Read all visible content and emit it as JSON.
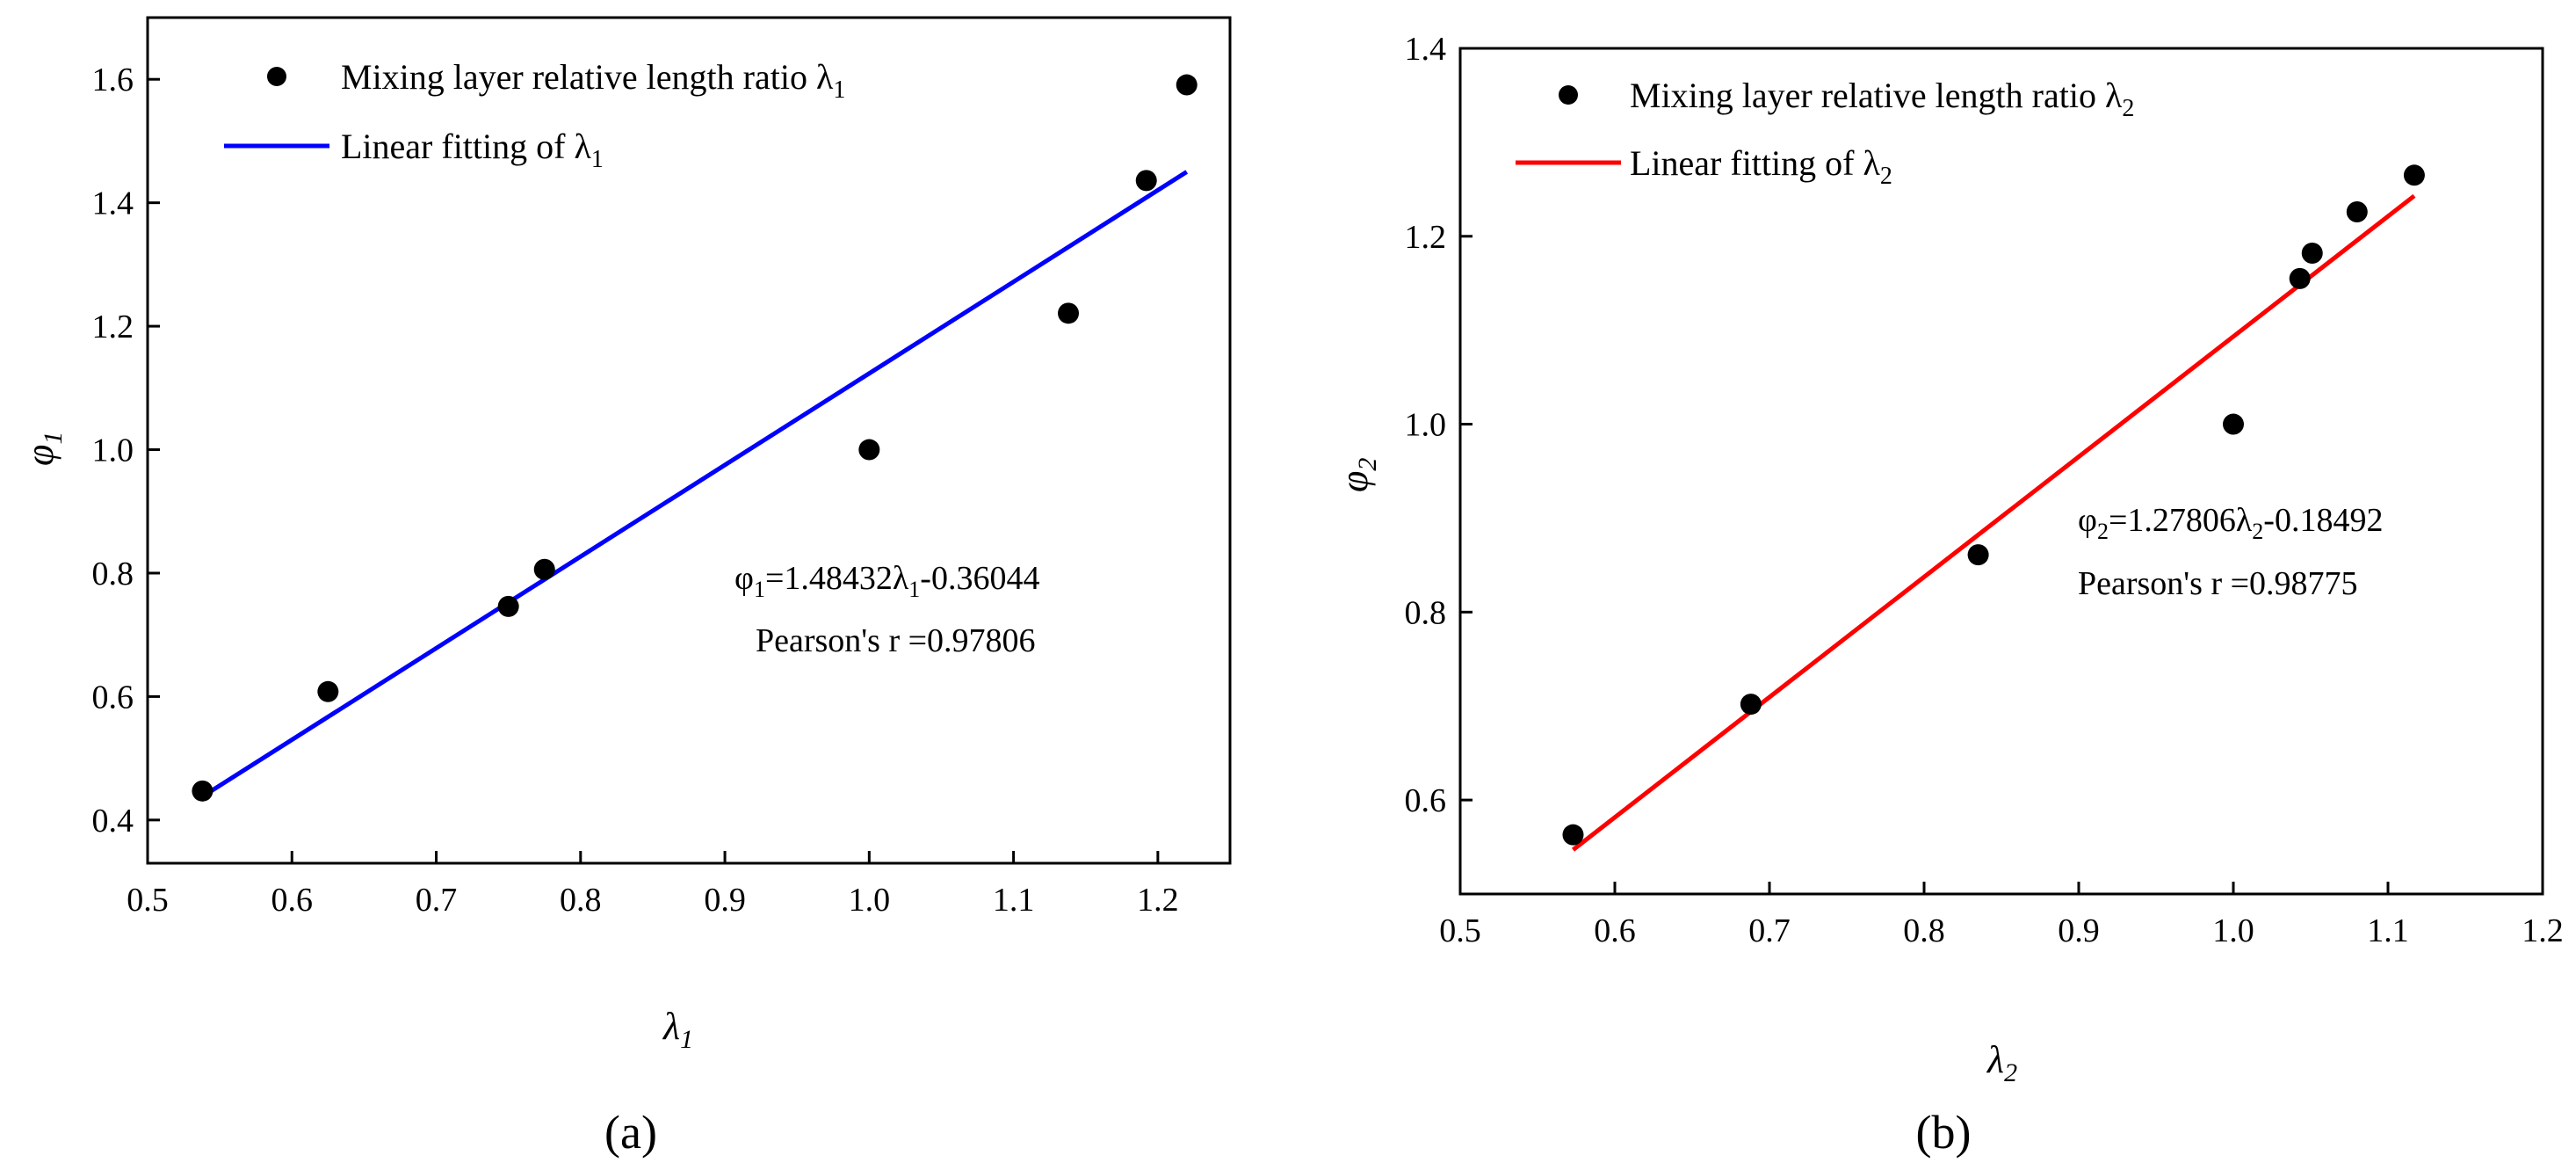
{
  "chart_data": [
    {
      "type": "scatter",
      "panel_label": "(a)",
      "xlabel": "λ",
      "xlabel_sub": "1",
      "ylabel": "φ",
      "ylabel_sub": "1",
      "xlim": [
        0.5,
        1.25
      ],
      "ylim": [
        0.33,
        1.7
      ],
      "xticks": [
        0.5,
        0.6,
        0.7,
        0.8,
        0.9,
        1.0,
        1.1,
        1.2
      ],
      "xtick_labels": [
        "0.5",
        "0.6",
        "0.7",
        "0.8",
        "0.9",
        "1.0",
        "1.1",
        "1.2"
      ],
      "yticks": [
        0.4,
        0.6,
        0.8,
        1.0,
        1.2,
        1.4,
        1.6
      ],
      "ytick_labels": [
        "0.4",
        "0.6",
        "0.8",
        "1.0",
        "1.2",
        "1.4",
        "1.6"
      ],
      "series": [
        {
          "name": "Mixing layer relative length ratio λ",
          "name_sub": "1",
          "kind": "scatter",
          "color": "#000000",
          "x": [
            0.538,
            0.625,
            0.75,
            0.775,
            1.0,
            1.138,
            1.192,
            1.22
          ],
          "y": [
            0.447,
            0.608,
            0.746,
            0.806,
            1.0,
            1.221,
            1.436,
            1.591
          ]
        },
        {
          "name": "Linear fitting of λ",
          "name_sub": "1",
          "kind": "line",
          "color": "#0000ff",
          "x": [
            0.538,
            1.22
          ],
          "y": [
            0.438,
            1.45
          ]
        }
      ],
      "equation": {
        "p1": "φ",
        "s1": "1",
        "p2": "=1.48432λ",
        "s2": "1",
        "p3": "-0.36044"
      },
      "pearson": "Pearson's r =0.97806",
      "legend_position": "top-left"
    },
    {
      "type": "scatter",
      "panel_label": "(b)",
      "xlabel": "λ",
      "xlabel_sub": "2",
      "ylabel": "φ",
      "ylabel_sub": "2",
      "xlim": [
        0.5,
        1.2
      ],
      "ylim": [
        0.5,
        1.4
      ],
      "xticks": [
        0.5,
        0.6,
        0.7,
        0.8,
        0.9,
        1.0,
        1.1,
        1.2
      ],
      "xtick_labels": [
        "0.5",
        "0.6",
        "0.7",
        "0.8",
        "0.9",
        "1.0",
        "1.1",
        "1.2"
      ],
      "yticks": [
        0.6,
        0.8,
        1.0,
        1.2,
        1.4
      ],
      "ytick_labels": [
        "0.6",
        "0.8",
        "1.0",
        "1.2",
        "1.4"
      ],
      "series": [
        {
          "name": "Mixing layer relative length ratio λ",
          "name_sub": "2",
          "kind": "scatter",
          "color": "#000000",
          "x": [
            0.573,
            0.688,
            0.835,
            1.0,
            1.043,
            1.051,
            1.08,
            1.117
          ],
          "y": [
            0.563,
            0.702,
            0.861,
            1.0,
            1.155,
            1.182,
            1.226,
            1.265
          ]
        },
        {
          "name": "Linear fitting of λ",
          "name_sub": "2",
          "kind": "line",
          "color": "#ff0000",
          "x": [
            0.573,
            1.117
          ],
          "y": [
            0.547,
            1.243
          ]
        }
      ],
      "equation": {
        "p1": "φ",
        "s1": "2",
        "p2": "=1.27806λ",
        "s2": "2",
        "p3": "-0.18492"
      },
      "pearson": "Pearson's r =0.98775",
      "legend_position": "top-left"
    }
  ]
}
